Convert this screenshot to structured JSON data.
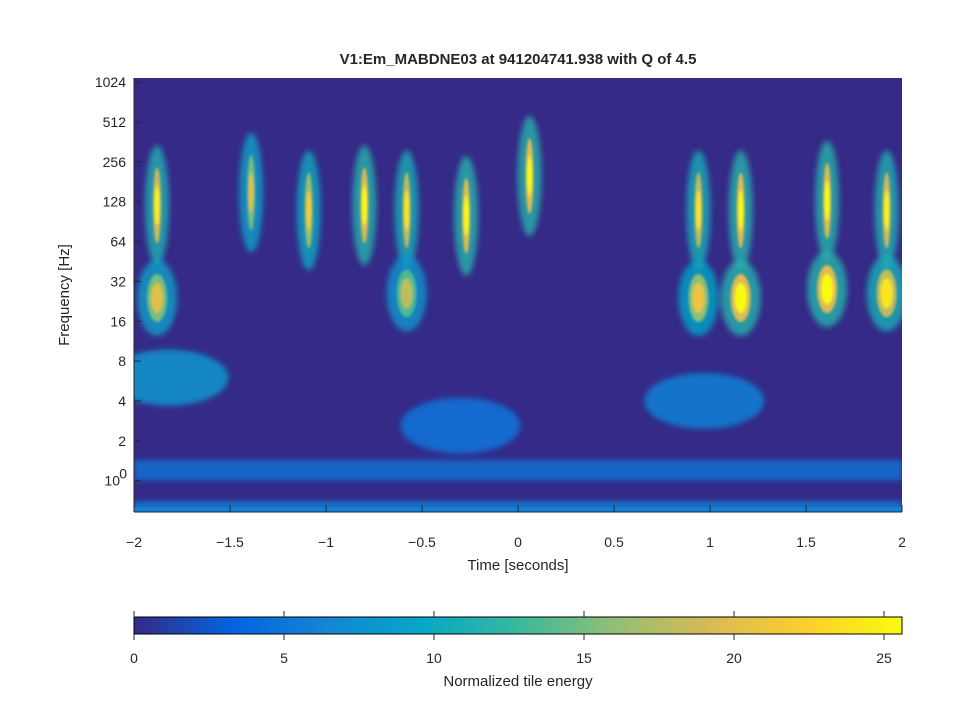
{
  "chart_data": {
    "type": "heatmap",
    "title": "V1:Em_MABDNE03 at 941204741.938 with Q of 4.5",
    "xlabel": "Time [seconds]",
    "ylabel": "Frequency [Hz]",
    "xlim": [
      -2,
      2
    ],
    "ylim": [
      0.58,
      1100
    ],
    "yscale": "log",
    "x_ticks": [
      {
        "value": -2,
        "label": "−2"
      },
      {
        "value": -1.5,
        "label": "−1.5"
      },
      {
        "value": -1,
        "label": "−1"
      },
      {
        "value": -0.5,
        "label": "−0.5"
      },
      {
        "value": 0,
        "label": "0"
      },
      {
        "value": 0.5,
        "label": "0.5"
      },
      {
        "value": 1,
        "label": "1"
      },
      {
        "value": 1.5,
        "label": "1.5"
      },
      {
        "value": 2,
        "label": "2"
      }
    ],
    "y_ticks": [
      {
        "value": 1,
        "label": "10",
        "sup": "0"
      },
      {
        "value": 2,
        "label": "2"
      },
      {
        "value": 4,
        "label": "4"
      },
      {
        "value": 8,
        "label": "8"
      },
      {
        "value": 16,
        "label": "16"
      },
      {
        "value": 32,
        "label": "32"
      },
      {
        "value": 64,
        "label": "64"
      },
      {
        "value": 128,
        "label": "128"
      },
      {
        "value": 256,
        "label": "256"
      },
      {
        "value": 512,
        "label": "512"
      },
      {
        "value": 1024,
        "label": "1024"
      }
    ],
    "colorbar": {
      "label": "Normalized tile energy",
      "range": [
        0,
        25.6
      ],
      "ticks": [
        {
          "value": 0,
          "label": "0"
        },
        {
          "value": 5,
          "label": "5"
        },
        {
          "value": 10,
          "label": "10"
        },
        {
          "value": 15,
          "label": "15"
        },
        {
          "value": 20,
          "label": "20"
        },
        {
          "value": 25,
          "label": "25"
        }
      ],
      "colormap": "parula"
    },
    "features": [
      {
        "kind": "glitch",
        "t": -1.88,
        "f": 120,
        "energy": 25
      },
      {
        "kind": "glitch",
        "t": -1.88,
        "f": 24,
        "energy": 20
      },
      {
        "kind": "glitch",
        "t": -1.39,
        "f": 150,
        "energy": 20
      },
      {
        "kind": "glitch",
        "t": -1.09,
        "f": 110,
        "energy": 22
      },
      {
        "kind": "glitch",
        "t": -0.8,
        "f": 120,
        "energy": 26
      },
      {
        "kind": "glitch",
        "t": -0.58,
        "f": 110,
        "energy": 24
      },
      {
        "kind": "glitch",
        "t": -0.58,
        "f": 26,
        "energy": 18
      },
      {
        "kind": "glitch",
        "t": -0.27,
        "f": 100,
        "energy": 26
      },
      {
        "kind": "glitch",
        "t": 0.06,
        "f": 200,
        "energy": 26
      },
      {
        "kind": "glitch",
        "t": 0.94,
        "f": 110,
        "energy": 24
      },
      {
        "kind": "glitch",
        "t": 0.94,
        "f": 24,
        "energy": 21
      },
      {
        "kind": "glitch",
        "t": 1.16,
        "f": 110,
        "energy": 26
      },
      {
        "kind": "glitch",
        "t": 1.16,
        "f": 24,
        "energy": 26
      },
      {
        "kind": "glitch",
        "t": 1.61,
        "f": 130,
        "energy": 26
      },
      {
        "kind": "glitch",
        "t": 1.61,
        "f": 28,
        "energy": 26
      },
      {
        "kind": "glitch",
        "t": 1.92,
        "f": 110,
        "energy": 25
      },
      {
        "kind": "glitch",
        "t": 1.92,
        "f": 26,
        "energy": 24
      },
      {
        "kind": "blob",
        "t": -1.82,
        "f": 6,
        "energy": 8
      },
      {
        "kind": "blob",
        "t": -0.3,
        "f": 2.6,
        "energy": 5
      },
      {
        "kind": "blob",
        "t": 0.97,
        "f": 4,
        "energy": 6
      },
      {
        "kind": "band",
        "f": 1.2,
        "energy": 5
      },
      {
        "kind": "band",
        "f": 0.62,
        "energy": 6
      }
    ]
  }
}
